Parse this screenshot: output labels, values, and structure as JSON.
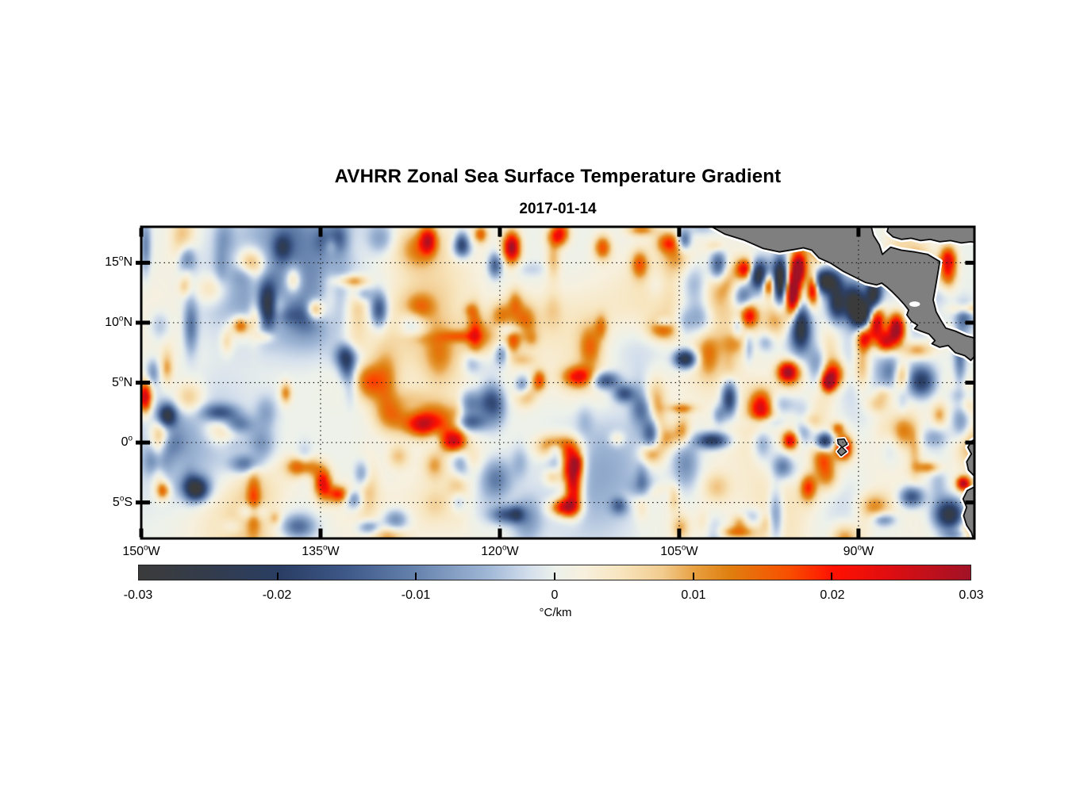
{
  "figure": {
    "title": "AVHRR Zonal Sea Surface Temperature Gradient",
    "date": "2017-01-14"
  },
  "axes": {
    "x_ticks": [
      {
        "deg": "150",
        "hemi": "W",
        "lon": -150
      },
      {
        "deg": "135",
        "hemi": "W",
        "lon": -135
      },
      {
        "deg": "120",
        "hemi": "W",
        "lon": -120
      },
      {
        "deg": "105",
        "hemi": "W",
        "lon": -105
      },
      {
        "deg": "90",
        "hemi": "W",
        "lon": -90
      }
    ],
    "y_ticks": [
      {
        "deg": "15",
        "hemi": "N",
        "lat": 15
      },
      {
        "deg": "10",
        "hemi": "N",
        "lat": 10
      },
      {
        "deg": "5",
        "hemi": "N",
        "lat": 5
      },
      {
        "deg": "0",
        "hemi": "",
        "lat": 0
      },
      {
        "deg": "5",
        "hemi": "S",
        "lat": -5
      }
    ],
    "grid_color": "#1a1a1a",
    "border_color": "#000000"
  },
  "colorbar": {
    "min": -0.03,
    "max": 0.03,
    "tick_values": [
      -0.03,
      -0.02,
      -0.01,
      0,
      0.01,
      0.02,
      0.03
    ],
    "tick_labels": [
      "-0.03",
      "-0.02",
      "-0.01",
      "0",
      "0.01",
      "0.02",
      "0.03"
    ],
    "unit": "°C/km",
    "stops": [
      {
        "t": 0.0,
        "c": "#3b3b3b"
      },
      {
        "t": 0.08,
        "c": "#343c4b"
      },
      {
        "t": 0.17,
        "c": "#2a3e64"
      },
      {
        "t": 0.25,
        "c": "#3e5888"
      },
      {
        "t": 0.33,
        "c": "#6481ac"
      },
      {
        "t": 0.42,
        "c": "#a0b7d6"
      },
      {
        "t": 0.47,
        "c": "#d4dfec"
      },
      {
        "t": 0.5,
        "c": "#ecf1eb"
      },
      {
        "t": 0.535,
        "c": "#f7f0de"
      },
      {
        "t": 0.58,
        "c": "#f7e5be"
      },
      {
        "t": 0.63,
        "c": "#f2cb8e"
      },
      {
        "t": 0.67,
        "c": "#e79e3e"
      },
      {
        "t": 0.71,
        "c": "#e07f10"
      },
      {
        "t": 0.78,
        "c": "#f85000"
      },
      {
        "t": 0.835,
        "c": "#ff1100"
      },
      {
        "t": 0.9,
        "c": "#e00e10"
      },
      {
        "t": 1.0,
        "c": "#a11226"
      }
    ]
  },
  "chart_data": {
    "type": "heatmap",
    "title": "AVHRR Zonal Sea Surface Temperature Gradient",
    "date": "2017-01-14",
    "value_units": "°C/km",
    "value_range": [
      -0.03,
      0.03
    ],
    "lon_range": [
      -150,
      -80.3
    ],
    "lat_range": [
      -8,
      18
    ],
    "grid_resolution_deg": 0.25,
    "legend_position": "bottom",
    "grid_on": true,
    "features": [
      [
        -101.8,
        14.8,
        -0.02,
        0.5,
        0.9
      ],
      [
        -99.6,
        14.6,
        0.022,
        0.5,
        0.6
      ],
      [
        -98.5,
        14.1,
        -0.026,
        0.5,
        0.8
      ],
      [
        -97.6,
        13.3,
        0.024,
        0.35,
        0.7
      ],
      [
        -96.6,
        13.6,
        -0.034,
        0.4,
        1.3
      ],
      [
        -95.1,
        14.6,
        0.035,
        0.45,
        0.9
      ],
      [
        -95.6,
        12.6,
        0.03,
        0.45,
        1.0
      ],
      [
        -93.9,
        13.0,
        0.03,
        0.35,
        0.9
      ],
      [
        -94.9,
        9.9,
        -0.022,
        0.5,
        1.2
      ],
      [
        -99.7,
        12.2,
        -0.02,
        0.6,
        0.8
      ],
      [
        -99.2,
        10.7,
        0.018,
        0.5,
        0.7
      ],
      [
        -92.8,
        13.5,
        -0.026,
        0.9,
        0.7
      ],
      [
        -91.9,
        11.8,
        -0.024,
        0.5,
        1.0
      ],
      [
        -90.5,
        11.9,
        -0.028,
        0.6,
        1.0
      ],
      [
        -89.8,
        10.8,
        -0.033,
        0.6,
        0.8
      ],
      [
        -88.8,
        12.4,
        -0.03,
        0.45,
        0.9
      ],
      [
        -88.6,
        10.2,
        0.031,
        0.5,
        1.1
      ],
      [
        -86.9,
        9.6,
        0.034,
        0.5,
        0.9
      ],
      [
        -87.8,
        8.5,
        0.022,
        0.5,
        0.6
      ],
      [
        -89.6,
        8.8,
        0.022,
        0.45,
        0.7
      ],
      [
        -92.2,
        5.8,
        0.022,
        0.7,
        0.8
      ],
      [
        -92.6,
        5.1,
        0.026,
        0.4,
        0.5
      ],
      [
        -96.0,
        6.0,
        0.026,
        0.6,
        0.6
      ],
      [
        -84.8,
        5.2,
        -0.022,
        0.8,
        0.9
      ],
      [
        -86.5,
        5.8,
        0.018,
        0.5,
        0.8
      ],
      [
        -82.6,
        14.8,
        0.013,
        0.5,
        1.2
      ],
      [
        -81.2,
        10.6,
        -0.012,
        0.5,
        0.8
      ],
      [
        -92.9,
        0.2,
        -0.026,
        0.5,
        0.5
      ],
      [
        -91.3,
        -0.3,
        0.026,
        0.5,
        0.7
      ],
      [
        -91.8,
        1.3,
        0.013,
        0.4,
        0.4
      ],
      [
        -82.4,
        -5.9,
        -0.03,
        0.9,
        0.9
      ],
      [
        -85.6,
        -4.4,
        -0.018,
        0.7,
        0.6
      ],
      [
        -81.3,
        -3.3,
        0.028,
        0.4,
        0.4
      ],
      [
        -104.6,
        7.1,
        -0.026,
        0.6,
        0.5
      ],
      [
        -111.3,
        5.3,
        -0.018,
        0.8,
        0.5
      ],
      [
        -109.7,
        4.2,
        -0.016,
        0.6,
        0.5
      ],
      [
        -113.5,
        5.6,
        0.019,
        0.9,
        0.6
      ],
      [
        -116.8,
        5.3,
        0.016,
        0.4,
        0.6
      ],
      [
        -120.8,
        3.1,
        -0.024,
        0.7,
        1.1
      ],
      [
        -122.6,
        1.8,
        -0.014,
        0.9,
        0.5
      ],
      [
        -126.6,
        1.6,
        0.021,
        1.0,
        0.7
      ],
      [
        -124.0,
        0.2,
        0.019,
        0.7,
        0.6
      ],
      [
        -115.3,
        -0.2,
        0.02,
        1.1,
        0.7
      ],
      [
        -114.2,
        -1.6,
        0.022,
        0.7,
        1.1
      ],
      [
        -113.9,
        -3.4,
        0.024,
        0.5,
        1.3
      ],
      [
        -114.8,
        -5.3,
        0.018,
        0.8,
        0.5
      ],
      [
        -123.4,
        -1.6,
        -0.022,
        0.6,
        1.0
      ],
      [
        -118.2,
        4.8,
        -0.014,
        0.45,
        0.6
      ],
      [
        -102.3,
        0.3,
        -0.023,
        0.9,
        0.45
      ],
      [
        -100.9,
        3.8,
        -0.022,
        0.45,
        1.0
      ],
      [
        -98.2,
        3.0,
        0.024,
        0.7,
        1.0
      ],
      [
        -95.8,
        0.3,
        0.022,
        0.45,
        0.5
      ],
      [
        -96.4,
        -1.9,
        -0.013,
        0.6,
        0.7
      ],
      [
        -94.3,
        -3.6,
        0.018,
        0.5,
        0.8
      ],
      [
        -107.4,
        0.9,
        -0.02,
        0.5,
        1.0
      ],
      [
        -110.1,
        -5.1,
        -0.013,
        0.5,
        0.5
      ],
      [
        -119.6,
        -5.9,
        -0.015,
        0.9,
        0.5
      ],
      [
        -149.8,
        3.9,
        0.028,
        0.4,
        0.9
      ],
      [
        -148.0,
        2.4,
        -0.015,
        0.5,
        0.6
      ],
      [
        -143.5,
        2.6,
        -0.016,
        1.0,
        0.5
      ],
      [
        -139.5,
        11.6,
        -0.021,
        0.5,
        1.3
      ],
      [
        -135.6,
        11.2,
        0.018,
        0.5,
        0.6
      ],
      [
        -130.2,
        11.2,
        -0.018,
        0.5,
        1.0
      ],
      [
        -136.6,
        -1.9,
        0.02,
        0.9,
        0.6
      ],
      [
        -134.9,
        -3.3,
        0.022,
        0.5,
        0.9
      ],
      [
        -133.6,
        -4.2,
        0.018,
        0.6,
        0.5
      ],
      [
        -145.6,
        -3.6,
        -0.019,
        0.8,
        0.7
      ],
      [
        -148.3,
        -3.9,
        0.015,
        0.4,
        0.5
      ],
      [
        -141.8,
        9.9,
        0.014,
        0.5,
        0.5
      ],
      [
        -146.3,
        15.3,
        -0.015,
        0.5,
        0.9
      ],
      [
        -138.3,
        16.4,
        -0.013,
        0.5,
        0.7
      ],
      [
        -131.6,
        -2.6,
        -0.016,
        0.5,
        0.9
      ],
      [
        -119.1,
        16.4,
        0.03,
        0.5,
        0.9
      ],
      [
        -120.5,
        14.9,
        -0.015,
        0.4,
        0.7
      ],
      [
        -126.1,
        17.0,
        0.02,
        0.5,
        0.8
      ],
      [
        -115.3,
        17.3,
        0.016,
        0.6,
        0.6
      ],
      [
        -111.5,
        16.4,
        0.016,
        0.5,
        0.7
      ],
      [
        -108.4,
        15.0,
        0.014,
        0.5,
        0.8
      ],
      [
        -106.0,
        16.8,
        0.016,
        0.7,
        0.6
      ],
      [
        -104.7,
        17.0,
        -0.016,
        0.4,
        0.6
      ],
      [
        -123.3,
        16.9,
        -0.013,
        0.4,
        0.6
      ],
      [
        -121.7,
        17.5,
        0.014,
        0.4,
        0.5
      ]
    ],
    "background_fields": [
      [
        -128,
        16.5,
        0.006,
        4,
        1.5
      ],
      [
        -104,
        12,
        0.005,
        5,
        3
      ],
      [
        -140,
        13,
        -0.004,
        4,
        3
      ],
      [
        -125,
        7,
        0.004,
        6,
        3
      ],
      [
        -90,
        -2,
        0.004,
        4,
        3
      ],
      [
        -135,
        -6,
        0.005,
        5,
        2
      ],
      [
        -115,
        10,
        0.004,
        8,
        2
      ],
      [
        -88,
        15.5,
        0.004,
        3,
        2
      ]
    ],
    "texture_noise": {
      "seed": 20170114,
      "count": 230,
      "amp_min": 0.003,
      "amp_max": 0.013,
      "sigma_min": 0.3,
      "sigma_max": 1.05,
      "broad_count": 34,
      "broad_amp": 0.0045,
      "broad_sigma_min": 1.5,
      "broad_sigma_max": 4.0
    },
    "land": {
      "fill": "#7f7f7f",
      "outline": "#0a0a0a",
      "coast_halo": "#ffffff",
      "regions": [
        {
          "name": "mexico-central-america",
          "polygon": [
            [
              -102.8,
              18.3
            ],
            [
              -101.2,
              17.4
            ],
            [
              -99.6,
              16.9
            ],
            [
              -98.0,
              16.2
            ],
            [
              -96.6,
              15.9
            ],
            [
              -95.4,
              16.1
            ],
            [
              -94.6,
              16.25
            ],
            [
              -93.9,
              16.05
            ],
            [
              -93.3,
              15.4
            ],
            [
              -92.3,
              14.95
            ],
            [
              -91.3,
              14.3
            ],
            [
              -90.3,
              13.8
            ],
            [
              -89.4,
              13.35
            ],
            [
              -88.5,
              13.15
            ],
            [
              -88.05,
              13.3
            ],
            [
              -87.65,
              13.0
            ],
            [
              -87.25,
              12.65
            ],
            [
              -86.7,
              12.1
            ],
            [
              -86.15,
              11.5
            ],
            [
              -85.8,
              11.05
            ],
            [
              -85.95,
              10.65
            ],
            [
              -85.55,
              10.1
            ],
            [
              -85.05,
              9.8
            ],
            [
              -85.3,
              9.5
            ],
            [
              -84.8,
              9.3
            ],
            [
              -84.1,
              9.05
            ],
            [
              -83.6,
              8.5
            ],
            [
              -83.85,
              8.25
            ],
            [
              -83.2,
              7.95
            ],
            [
              -82.5,
              8.1
            ],
            [
              -81.9,
              7.5
            ],
            [
              -81.1,
              7.25
            ],
            [
              -80.6,
              6.85
            ],
            [
              -80.2,
              7.3
            ],
            [
              -80.0,
              8.0
            ],
            [
              -80.2,
              8.7
            ],
            [
              -81.0,
              8.9
            ],
            [
              -81.9,
              9.3
            ],
            [
              -82.7,
              9.55
            ],
            [
              -83.05,
              10.1
            ],
            [
              -83.5,
              10.9
            ],
            [
              -83.75,
              11.9
            ],
            [
              -83.55,
              13.0
            ],
            [
              -83.35,
              14.2
            ],
            [
              -83.2,
              15.1
            ],
            [
              -84.2,
              15.7
            ],
            [
              -85.3,
              15.9
            ],
            [
              -86.4,
              16.05
            ],
            [
              -87.3,
              16.3
            ],
            [
              -88.0,
              15.7
            ],
            [
              -88.25,
              16.5
            ],
            [
              -88.75,
              17.3
            ],
            [
              -89.0,
              18.3
            ]
          ]
        },
        {
          "name": "yucatan-caribbean-strip",
          "polygon": [
            [
              -87.4,
              18.3
            ],
            [
              -87.6,
              17.6
            ],
            [
              -87.1,
              17.15
            ],
            [
              -86.4,
              16.95
            ],
            [
              -85.6,
              17.05
            ],
            [
              -84.8,
              16.85
            ],
            [
              -84.0,
              16.95
            ],
            [
              -83.2,
              16.75
            ],
            [
              -82.3,
              16.85
            ],
            [
              -81.4,
              16.65
            ],
            [
              -80.6,
              16.75
            ],
            [
              -80.0,
              16.65
            ],
            [
              -80.0,
              18.3
            ]
          ]
        },
        {
          "name": "ecuador-north",
          "polygon": [
            [
              -80.0,
              0.45
            ],
            [
              -80.55,
              0.1
            ],
            [
              -80.85,
              -0.4
            ],
            [
              -80.55,
              -0.95
            ],
            [
              -80.95,
              -1.6
            ],
            [
              -80.8,
              -2.3
            ],
            [
              -80.35,
              -2.75
            ],
            [
              -80.0,
              -3.1
            ]
          ]
        },
        {
          "name": "ecuador-peru-south",
          "polygon": [
            [
              -80.0,
              -3.55
            ],
            [
              -80.9,
              -4.0
            ],
            [
              -81.25,
              -4.7
            ],
            [
              -80.95,
              -5.4
            ],
            [
              -81.2,
              -6.1
            ],
            [
              -80.95,
              -6.9
            ],
            [
              -80.55,
              -7.5
            ],
            [
              -80.3,
              -8.3
            ],
            [
              -80.0,
              -8.3
            ]
          ]
        },
        {
          "name": "galapagos-island",
          "polygon": [
            [
              -91.75,
              0.25
            ],
            [
              -91.2,
              0.3
            ],
            [
              -90.95,
              -0.15
            ],
            [
              -91.35,
              -0.4
            ],
            [
              -91.0,
              -0.75
            ],
            [
              -91.45,
              -1.1
            ],
            [
              -91.75,
              -0.75
            ],
            [
              -91.4,
              -0.35
            ],
            [
              -91.7,
              -0.1
            ]
          ]
        }
      ],
      "lakes": [
        {
          "name": "lake-nicaragua",
          "lon": -85.3,
          "lat": 11.55,
          "rx": 0.45,
          "ry": 0.22
        }
      ]
    }
  }
}
